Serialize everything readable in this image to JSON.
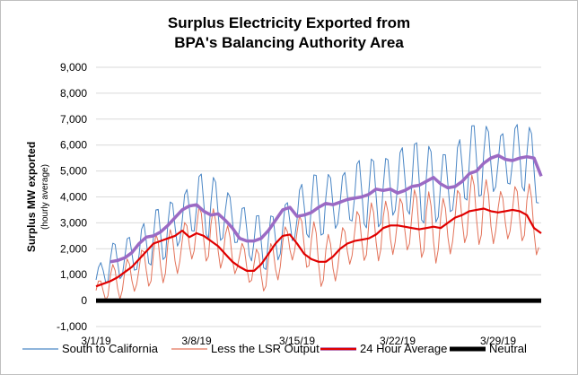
{
  "chart_data": {
    "type": "line",
    "title": [
      "Surplus Electricity Exported from",
      "BPA's Balancing Authority Area"
    ],
    "ylabel": "Surplus MW exported",
    "ylabel_sub": "(hourly average)",
    "xlabel": "",
    "ylim": [
      -1000,
      9000
    ],
    "yticks": [
      -1000,
      0,
      1000,
      2000,
      3000,
      4000,
      5000,
      6000,
      7000,
      8000,
      9000
    ],
    "ytick_labels": [
      "-1,000",
      "0",
      "1,000",
      "2,000",
      "3,000",
      "4,000",
      "5,000",
      "6,000",
      "7,000",
      "8,000",
      "9,000"
    ],
    "xlim": [
      0,
      31
    ],
    "xticks": [
      0,
      7,
      14,
      21,
      28
    ],
    "xtick_labels": [
      "3/1/19",
      "3/8/19",
      "3/15/19",
      "3/22/19",
      "3/29/19"
    ],
    "grid": "horizontal",
    "legend_position": "bottom",
    "series": [
      {
        "name": "South to California",
        "color": "#4a86c5",
        "style": "thin",
        "daily_base": [
          800,
          1500,
          1700,
          1900,
          2400,
          2800,
          3200,
          3700,
          3600,
          3400,
          2900,
          2300,
          2200,
          2800,
          3300,
          3600,
          3800,
          3900,
          4100,
          4100,
          4300,
          4600,
          4600,
          4500,
          4500,
          4600,
          5300,
          5500,
          5400,
          5500,
          5500,
          4800
        ],
        "daily_amplitude": [
          300,
          700,
          900,
          900,
          1000,
          1100,
          1100,
          1200,
          1200,
          1100,
          1000,
          1000,
          1000,
          1100,
          1100,
          1200,
          1200,
          1200,
          1300,
          1300,
          1400,
          1500,
          1500,
          1500,
          1500,
          1500,
          1400,
          1400,
          1300,
          1300,
          1300,
          1200
        ]
      },
      {
        "name": "Less the LSR Output",
        "color": "#e3735a",
        "style": "thin",
        "daily_base": [
          300,
          700,
          900,
          1100,
          1500,
          1800,
          2100,
          2600,
          2500,
          2200,
          1600,
          1200,
          1200,
          2000,
          2500,
          2000,
          1500,
          1900,
          2400,
          2600,
          2800,
          2900,
          3000,
          2900,
          2800,
          3000,
          3500,
          3500,
          3300,
          3300,
          3400,
          2700
        ],
        "daily_amplitude": [
          300,
          600,
          800,
          800,
          900,
          900,
          1000,
          1000,
          1000,
          900,
          800,
          700,
          800,
          900,
          900,
          1000,
          1000,
          1000,
          1000,
          1000,
          1100,
          1200,
          1200,
          1200,
          1300,
          1300,
          1200,
          1200,
          1100,
          1100,
          1100,
          1000
        ]
      },
      {
        "name": "24 Hour Average",
        "color": "#e00000",
        "style": "medium",
        "x": [
          0,
          0.5,
          1,
          1.5,
          2,
          2.5,
          3,
          3.5,
          4,
          4.5,
          5,
          5.5,
          6,
          6.5,
          7,
          7.5,
          8,
          8.5,
          9,
          9.5,
          10,
          10.5,
          11,
          11.5,
          12,
          12.5,
          13,
          13.5,
          14,
          14.5,
          15,
          15.5,
          16,
          16.5,
          17,
          17.5,
          18,
          18.5,
          19,
          19.5,
          20,
          20.5,
          21,
          21.5,
          22,
          22.5,
          23,
          23.5,
          24,
          24.5,
          25,
          25.5,
          26,
          26.5,
          27,
          27.5,
          28,
          28.5,
          29,
          29.5,
          30,
          30.5,
          31
        ],
        "y": [
          550,
          650,
          750,
          900,
          1100,
          1300,
          1600,
          1900,
          2200,
          2300,
          2400,
          2500,
          2700,
          2450,
          2600,
          2500,
          2300,
          2100,
          1800,
          1500,
          1300,
          1150,
          1150,
          1400,
          1800,
          2200,
          2500,
          2550,
          2200,
          1800,
          1600,
          1500,
          1500,
          1700,
          2000,
          2200,
          2300,
          2350,
          2400,
          2550,
          2800,
          2900,
          2900,
          2850,
          2800,
          2750,
          2800,
          2850,
          2800,
          3000,
          3200,
          3300,
          3450,
          3500,
          3550,
          3450,
          3400,
          3450,
          3500,
          3450,
          3300,
          2800,
          2600
        ]
      },
      {
        "name": "24 Hour Average",
        "color": "#9b6ac4",
        "style": "thick",
        "x": [
          1,
          1.5,
          2,
          2.5,
          3,
          3.5,
          4,
          4.5,
          5,
          5.5,
          6,
          6.5,
          7,
          7.5,
          8,
          8.5,
          9,
          9.5,
          10,
          10.5,
          11,
          11.5,
          12,
          12.5,
          13,
          13.5,
          14,
          14.5,
          15,
          15.5,
          16,
          16.5,
          17,
          17.5,
          18,
          18.5,
          19,
          19.5,
          20,
          20.5,
          21,
          21.5,
          22,
          22.5,
          23,
          23.5,
          24,
          24.5,
          25,
          25.5,
          26,
          26.5,
          27,
          27.5,
          28,
          28.5,
          29,
          29.5,
          30,
          30.5,
          31
        ],
        "y": [
          1500,
          1550,
          1650,
          1850,
          2200,
          2450,
          2500,
          2650,
          2900,
          3200,
          3500,
          3650,
          3700,
          3450,
          3300,
          3350,
          3100,
          2800,
          2400,
          2300,
          2300,
          2400,
          2700,
          3100,
          3500,
          3600,
          3250,
          3300,
          3400,
          3600,
          3750,
          3700,
          3800,
          3900,
          3950,
          4000,
          4100,
          4300,
          4250,
          4300,
          4150,
          4250,
          4400,
          4450,
          4600,
          4750,
          4500,
          4350,
          4400,
          4600,
          4900,
          5000,
          5300,
          5500,
          5600,
          5450,
          5400,
          5500,
          5550,
          5500,
          4800
        ]
      },
      {
        "name": "Neutral",
        "color": "#000000",
        "style": "heavy",
        "x": [
          0,
          31
        ],
        "y": [
          0,
          0
        ]
      }
    ],
    "legend": [
      "South to California",
      "Less the LSR Output",
      "24 Hour Average",
      "Neutral"
    ]
  }
}
